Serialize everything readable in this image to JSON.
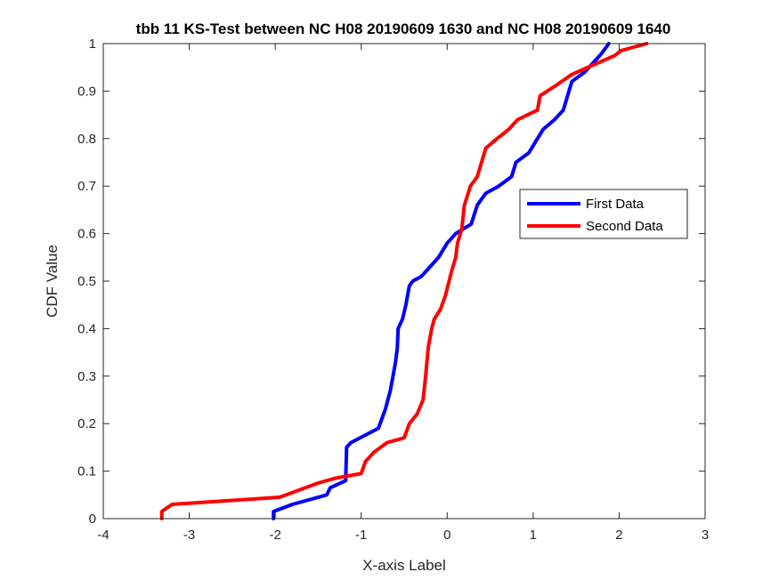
{
  "chart_data": {
    "type": "line",
    "title": "tbb 11 KS-Test between NC H08 20190609 1630 and NC H08 20190609 1640",
    "xlabel": "X-axis Label",
    "ylabel": "CDF Value",
    "xlim": [
      -4,
      3
    ],
    "ylim": [
      0,
      1
    ],
    "xticks": [
      -4,
      -3,
      -2,
      -1,
      0,
      1,
      2,
      3
    ],
    "yticks": [
      0,
      0.1,
      0.2,
      0.3,
      0.4,
      0.5,
      0.6,
      0.7,
      0.8,
      0.9,
      1
    ],
    "xtick_labels": [
      "-4",
      "-3",
      "-2",
      "-1",
      "0",
      "1",
      "2",
      "3"
    ],
    "ytick_labels": [
      "0",
      "0.1",
      "0.2",
      "0.3",
      "0.4",
      "0.5",
      "0.6",
      "0.7",
      "0.8",
      "0.9",
      "1"
    ],
    "grid": false,
    "legend_position": "right",
    "series": [
      {
        "name": "First Data",
        "color": "#0000ff",
        "points": [
          [
            -2.02,
            0.0
          ],
          [
            -2.02,
            0.015
          ],
          [
            -1.8,
            0.03
          ],
          [
            -1.4,
            0.05
          ],
          [
            -1.36,
            0.065
          ],
          [
            -1.18,
            0.08
          ],
          [
            -1.17,
            0.15
          ],
          [
            -1.12,
            0.16
          ],
          [
            -0.8,
            0.19
          ],
          [
            -0.72,
            0.23
          ],
          [
            -0.66,
            0.27
          ],
          [
            -0.62,
            0.31
          ],
          [
            -0.6,
            0.33
          ],
          [
            -0.58,
            0.36
          ],
          [
            -0.57,
            0.4
          ],
          [
            -0.52,
            0.42
          ],
          [
            -0.48,
            0.45
          ],
          [
            -0.44,
            0.49
          ],
          [
            -0.4,
            0.5
          ],
          [
            -0.3,
            0.51
          ],
          [
            -0.2,
            0.53
          ],
          [
            -0.1,
            0.55
          ],
          [
            0.0,
            0.58
          ],
          [
            0.1,
            0.6
          ],
          [
            0.28,
            0.62
          ],
          [
            0.35,
            0.66
          ],
          [
            0.45,
            0.685
          ],
          [
            0.6,
            0.7
          ],
          [
            0.75,
            0.72
          ],
          [
            0.8,
            0.75
          ],
          [
            0.95,
            0.77
          ],
          [
            1.05,
            0.8
          ],
          [
            1.12,
            0.82
          ],
          [
            1.25,
            0.84
          ],
          [
            1.35,
            0.86
          ],
          [
            1.4,
            0.89
          ],
          [
            1.45,
            0.92
          ],
          [
            1.6,
            0.94
          ],
          [
            1.7,
            0.96
          ],
          [
            1.8,
            0.98
          ],
          [
            1.88,
            1.0
          ]
        ]
      },
      {
        "name": "Second Data",
        "color": "#ff0000",
        "points": [
          [
            -3.32,
            0.0
          ],
          [
            -3.32,
            0.015
          ],
          [
            -3.2,
            0.03
          ],
          [
            -1.95,
            0.045
          ],
          [
            -1.5,
            0.075
          ],
          [
            -1.3,
            0.085
          ],
          [
            -1.0,
            0.095
          ],
          [
            -0.95,
            0.12
          ],
          [
            -0.85,
            0.14
          ],
          [
            -0.7,
            0.16
          ],
          [
            -0.5,
            0.17
          ],
          [
            -0.44,
            0.2
          ],
          [
            -0.35,
            0.22
          ],
          [
            -0.28,
            0.25
          ],
          [
            -0.25,
            0.3
          ],
          [
            -0.22,
            0.36
          ],
          [
            -0.18,
            0.4
          ],
          [
            -0.15,
            0.42
          ],
          [
            -0.08,
            0.44
          ],
          [
            -0.02,
            0.47
          ],
          [
            0.05,
            0.52
          ],
          [
            0.1,
            0.55
          ],
          [
            0.12,
            0.58
          ],
          [
            0.17,
            0.61
          ],
          [
            0.2,
            0.66
          ],
          [
            0.27,
            0.7
          ],
          [
            0.35,
            0.72
          ],
          [
            0.4,
            0.75
          ],
          [
            0.45,
            0.78
          ],
          [
            0.58,
            0.8
          ],
          [
            0.65,
            0.81
          ],
          [
            0.72,
            0.82
          ],
          [
            0.82,
            0.84
          ],
          [
            1.05,
            0.86
          ],
          [
            1.08,
            0.89
          ],
          [
            1.25,
            0.91
          ],
          [
            1.45,
            0.935
          ],
          [
            1.7,
            0.955
          ],
          [
            1.95,
            0.975
          ],
          [
            2.02,
            0.985
          ],
          [
            2.32,
            1.0
          ]
        ]
      }
    ]
  }
}
